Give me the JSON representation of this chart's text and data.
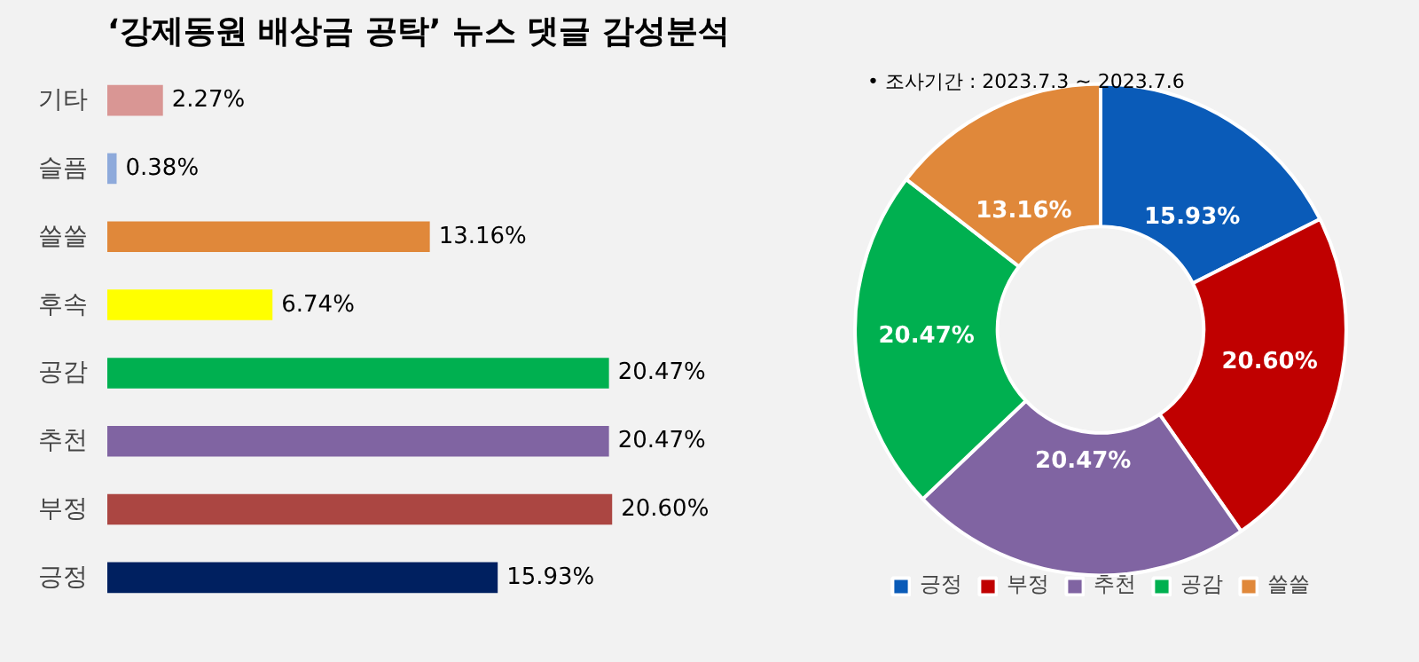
{
  "chart_data": [
    {
      "type": "bar",
      "title": "‘강제동원 배상금 공탁’ 뉴스 댓글 감성분석",
      "orientation": "horizontal",
      "categories": [
        "기타",
        "슬픔",
        "쓸쓸",
        "후속",
        "공감",
        "추천",
        "부정",
        "긍정"
      ],
      "values": [
        2.27,
        0.38,
        13.16,
        6.74,
        20.47,
        20.47,
        20.6,
        15.93
      ],
      "colors": [
        "#d99694",
        "#8eaadb",
        "#e0883a",
        "#ffff00",
        "#00b050",
        "#8064a2",
        "#ab4642",
        "#002060"
      ],
      "value_labels": [
        "2.27%",
        "0.38%",
        "13.16%",
        "6.74%",
        "20.47%",
        "20.47%",
        "20.60%",
        "15.93%"
      ]
    },
    {
      "type": "donut",
      "annotations": [
        "•   조사기간 : 2023.7.3 ~ 2023.7.6"
      ],
      "categories": [
        "긍정",
        "부정",
        "추천",
        "공감",
        "쓸쓸"
      ],
      "values": [
        15.93,
        20.6,
        20.47,
        20.47,
        13.16
      ],
      "colors": [
        "#0a5bb8",
        "#c00000",
        "#8064a2",
        "#00b050",
        "#e0883a"
      ],
      "value_labels": [
        "15.93%",
        "20.60%",
        "20.47%",
        "20.47%",
        "13.16%"
      ],
      "legend": "bottom"
    }
  ]
}
